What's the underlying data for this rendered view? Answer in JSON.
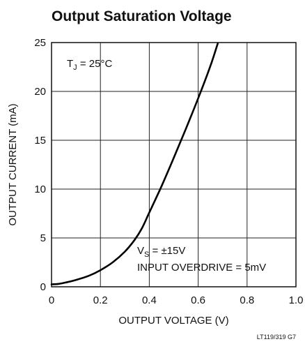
{
  "chart_data": {
    "type": "line",
    "title": "Output Saturation Voltage",
    "xlabel": "OUTPUT VOLTAGE (V)",
    "ylabel": "OUTPUT CURRENT (mA)",
    "xlim": [
      0,
      1.0
    ],
    "ylim": [
      0,
      25
    ],
    "x_ticks": [
      "0",
      "0.2",
      "0.4",
      "0.6",
      "0.8",
      "1.0"
    ],
    "y_ticks": [
      "0",
      "5",
      "10",
      "15",
      "20",
      "25"
    ],
    "grid": true,
    "series": [
      {
        "x": [
          0,
          0.03,
          0.06,
          0.1,
          0.15,
          0.2,
          0.25,
          0.3,
          0.34,
          0.37,
          0.4,
          0.45,
          0.5,
          0.55,
          0.6,
          0.65,
          0.68
        ],
        "values": [
          0.25,
          0.3,
          0.45,
          0.7,
          1.1,
          1.7,
          2.5,
          3.6,
          4.8,
          6.0,
          7.6,
          10.3,
          13.2,
          16.2,
          19.3,
          22.6,
          24.9
        ]
      }
    ],
    "annotations": {
      "tj_main": "T",
      "tj_sub": "J",
      "tj_rest": " = 25°C",
      "vs_main": "V",
      "vs_sub": "S",
      "vs_rest": " = ±15V",
      "overdrive": "INPUT OVERDRIVE = 5mV"
    },
    "figure_code": "LT119/319 G7"
  }
}
